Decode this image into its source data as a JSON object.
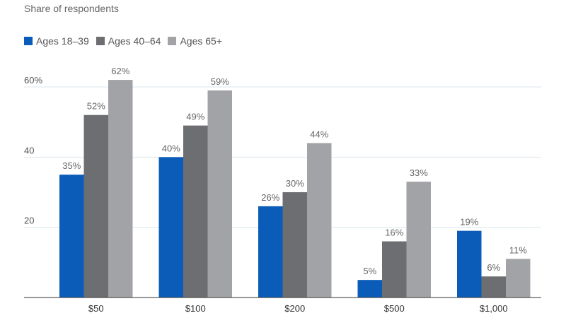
{
  "chart_data": {
    "type": "bar",
    "ylabel": "Share of respondents",
    "categories": [
      "$50",
      "$100",
      "$200",
      "$500",
      "$1,000"
    ],
    "series": [
      {
        "name": "Ages 18–39",
        "color": "#0a5cb8",
        "values": [
          35,
          40,
          26,
          5,
          19
        ]
      },
      {
        "name": "Ages 40–64",
        "color": "#6d6e71",
        "values": [
          52,
          49,
          30,
          16,
          6
        ]
      },
      {
        "name": "Ages 65+",
        "color": "#a2a3a6",
        "values": [
          62,
          59,
          44,
          33,
          11
        ]
      }
    ],
    "yticks": [
      {
        "value": 20,
        "label": "20"
      },
      {
        "value": 40,
        "label": "40"
      },
      {
        "value": 60,
        "label": "60%"
      }
    ],
    "ylim": [
      0,
      60
    ],
    "grid": true,
    "legend": "top-left",
    "data_label_suffix": "%"
  }
}
